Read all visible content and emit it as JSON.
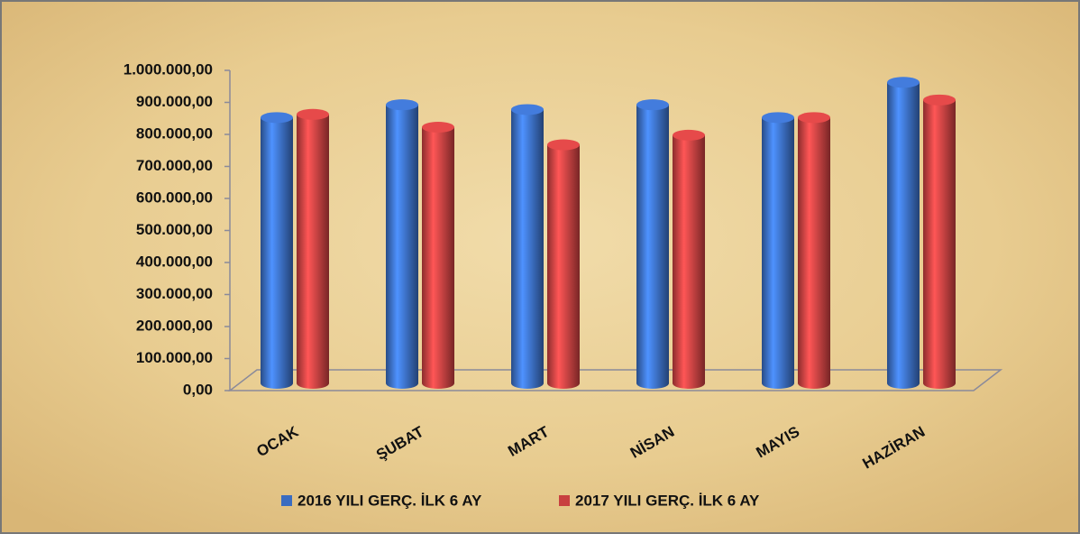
{
  "chart_data": {
    "type": "bar",
    "categories": [
      "OCAK",
      "ŞUBAT",
      "MART",
      "NİSAN",
      "MAYIS",
      "HAZİRAN"
    ],
    "series": [
      {
        "name": "2016 YILI GERÇ. İLK 6 AY",
        "color": "#3a6cc0",
        "values": [
          830000,
          870000,
          855000,
          870000,
          830000,
          940000
        ]
      },
      {
        "name": "2017 YILI GERÇ. İLK 6 AY",
        "color": "#c84040",
        "values": [
          840000,
          800000,
          745000,
          775000,
          830000,
          885000
        ]
      }
    ],
    "ylim": [
      0,
      1000000
    ],
    "yticks": [
      {
        "value": 0,
        "label": "0,00"
      },
      {
        "value": 100000,
        "label": "100.000,00"
      },
      {
        "value": 200000,
        "label": "200.000,00"
      },
      {
        "value": 300000,
        "label": "300.000,00"
      },
      {
        "value": 400000,
        "label": "400.000,00"
      },
      {
        "value": 500000,
        "label": "500.000,00"
      },
      {
        "value": 600000,
        "label": "600.000,00"
      },
      {
        "value": 700000,
        "label": "700.000,00"
      },
      {
        "value": 800000,
        "label": "800.000,00"
      },
      {
        "value": 900000,
        "label": "900.000,00"
      },
      {
        "value": 1000000,
        "label": "1.000.000,00"
      }
    ],
    "grid": false,
    "legend": "bottom"
  }
}
